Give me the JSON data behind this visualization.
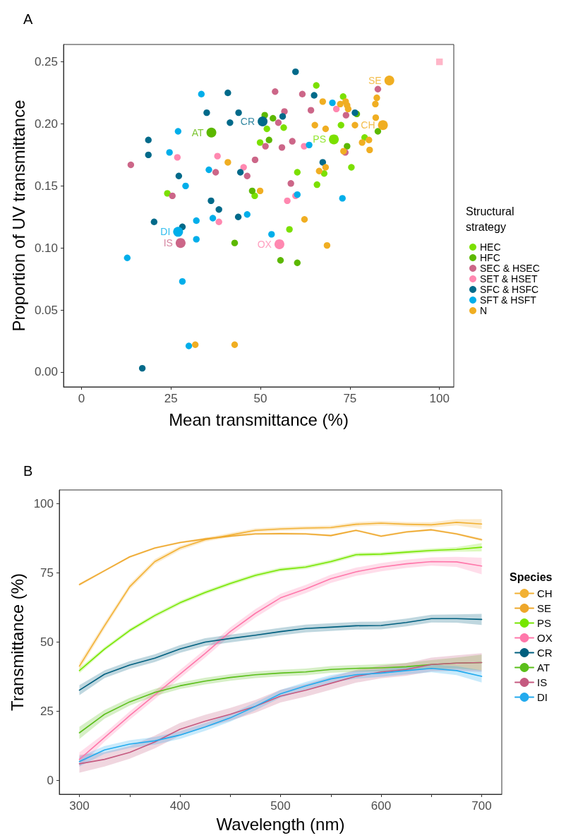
{
  "chart_data": [
    {
      "type": "scatter",
      "title": "A",
      "xlabel": "Mean transmittance (%)",
      "ylabel": "Proportion of UV transmittance",
      "legend_title": "Structural strategy",
      "legend": "right",
      "grid": false,
      "marker": "circle",
      "xlim": [
        -5,
        104
      ],
      "xticks": [
        0,
        25,
        50,
        75,
        100
      ],
      "ylim": [
        -0.012,
        0.264
      ],
      "yticks": [
        {
          "value": 0,
          "label": "0.00"
        },
        {
          "value": 0.05,
          "label": "0.05"
        },
        {
          "value": 0.1,
          "label": "0.10"
        },
        {
          "value": 0.15,
          "label": "0.15"
        },
        {
          "value": 0.2,
          "label": "0.20"
        },
        {
          "value": 0.25,
          "label": "0.25"
        }
      ],
      "series": [
        {
          "name": "HEC",
          "color": "#7be000",
          "sizes": [
            0.45,
            0.45,
            0.45,
            0.45,
            0.45,
            0.45,
            0.45,
            0.45,
            1,
            0.45,
            0.45,
            0.45,
            0.45,
            0.45,
            0.45
          ],
          "x": [
            49.9,
            48.4,
            24.0,
            65.6,
            73.1,
            51.8,
            56.5,
            72.5,
            70.5,
            79.1,
            75.4,
            67.8,
            60.3,
            65.8,
            58.1
          ],
          "values": [
            0.185,
            0.142,
            0.144,
            0.231,
            0.222,
            0.196,
            0.197,
            0.199,
            0.1875,
            0.189,
            0.165,
            0.16,
            0.161,
            0.151,
            0.115
          ]
        },
        {
          "name": "HFC",
          "color": "#5cb800",
          "sizes": [
            1,
            0.45,
            0.45,
            0.45,
            0.45,
            0.45,
            0.45,
            0.45,
            0.45,
            0.45,
            0.45
          ],
          "x": [
            36.3,
            47.7,
            42.8,
            76.9,
            82.8,
            52.4,
            51.2,
            53.5,
            74.2,
            55.6,
            60.3
          ],
          "values": [
            0.193,
            0.146,
            0.104,
            0.208,
            0.194,
            0.187,
            0.207,
            0.2045,
            0.182,
            0.09,
            0.088
          ]
        },
        {
          "name": "SEC & HSEC",
          "color": "#cc6688",
          "sizes": [
            0.45,
            0.45,
            0.45,
            0.45,
            0.45,
            1,
            0.45,
            0.45,
            0.45,
            0.45,
            0.45,
            0.45,
            0.45,
            0.45,
            0.45,
            0.45,
            0.45,
            0.45
          ],
          "x": [
            13.8,
            37.5,
            46.3,
            25.4,
            48.5,
            27.7,
            54.1,
            61.7,
            64.1,
            73.9,
            82.8,
            58.9,
            56.0,
            51.4,
            56.7,
            55.0,
            73.7,
            58.5
          ],
          "values": [
            0.167,
            0.161,
            0.158,
            0.142,
            0.171,
            0.104,
            0.226,
            0.224,
            0.211,
            0.207,
            0.228,
            0.186,
            0.181,
            0.182,
            0.21,
            0.201,
            0.177,
            0.152
          ]
        },
        {
          "name": "SET & HSET",
          "color": "#ff88b0",
          "sizes": [
            0.45,
            0.45,
            0.45,
            0.45,
            0.45,
            0.45,
            0.45,
            0.45,
            1
          ],
          "x": [
            26.8,
            38.0,
            45.3,
            38.4,
            71.2,
            62.2,
            59.8,
            57.5,
            55.3
          ],
          "values": [
            0.173,
            0.174,
            0.165,
            0.121,
            0.212,
            0.182,
            0.142,
            0.138,
            0.103
          ]
        },
        {
          "name": "SFC & HSFC",
          "color": "#006a8a",
          "sizes": [
            0.45,
            0.45,
            0.45,
            0.45,
            1,
            0.45,
            0.45,
            0.45,
            0.45,
            0.45,
            0.45,
            0.45,
            0.45,
            0.45,
            0.45,
            0.45,
            0.45,
            0.45,
            0.45,
            0.45
          ],
          "x": [
            40.9,
            35.0,
            43.9,
            41.5,
            50.6,
            18.7,
            18.7,
            44.4,
            27.2,
            36.2,
            38.4,
            43.8,
            20.3,
            28.2,
            17.0,
            59.8,
            65.0,
            56.2,
            76.4,
            67.4
          ],
          "values": [
            0.225,
            0.209,
            0.209,
            0.201,
            0.202,
            0.187,
            0.175,
            0.161,
            0.158,
            0.138,
            0.131,
            0.125,
            0.121,
            0.117,
            0.003,
            0.242,
            0.223,
            0.206,
            0.209,
            0.169
          ]
        },
        {
          "name": "SFT & HSFT",
          "color": "#00aeea",
          "sizes": [
            0.45,
            0.45,
            0.45,
            0.45,
            0.45,
            0.45,
            0.45,
            0.45,
            1,
            0.45,
            0.45,
            0.45,
            0.45,
            0.45,
            0.45,
            0.45,
            0.45,
            0.45
          ],
          "x": [
            33.5,
            27.0,
            24.6,
            35.6,
            29.1,
            46.3,
            36.7,
            32.1,
            27.0,
            32.1,
            12.8,
            28.2,
            30.0,
            70.1,
            63.6,
            60.3,
            72.9,
            53.1
          ],
          "values": [
            0.224,
            0.194,
            0.177,
            0.163,
            0.15,
            0.127,
            0.124,
            0.122,
            0.113,
            0.107,
            0.092,
            0.073,
            0.021,
            0.217,
            0.183,
            0.143,
            0.14,
            0.111
          ]
        },
        {
          "name": "N",
          "color": "#f0ae22",
          "sizes": [
            0.45,
            0.45,
            0.45,
            0.45,
            0.45,
            0.45,
            0.45,
            0.45,
            0.45,
            1,
            0.45,
            0.45,
            0.45,
            1,
            0.45,
            0.45,
            0.45,
            0.45,
            0.45,
            0.45,
            0.45,
            0.45,
            0.45,
            0.45,
            0.45
          ],
          "x": [
            40.9,
            49.9,
            31.8,
            42.8,
            67.4,
            72.3,
            73.8,
            74.2,
            74.5,
            86.0,
            82.5,
            82.1,
            82.2,
            84.2,
            76.4,
            65.2,
            68.2,
            80.3,
            78.4,
            73.2,
            80.5,
            68.2,
            66.4,
            62.3,
            68.6
          ],
          "values": [
            0.169,
            0.146,
            0.022,
            0.022,
            0.218,
            0.216,
            0.218,
            0.215,
            0.212,
            0.235,
            0.221,
            0.216,
            0.205,
            0.199,
            0.199,
            0.199,
            0.196,
            0.187,
            0.185,
            0.178,
            0.179,
            0.165,
            0.162,
            0.123,
            0.102
          ]
        },
        {
          "color": "#ffb6c8",
          "marker": "square",
          "sizes": [
            0.45
          ],
          "x": [
            100
          ],
          "values": [
            0.25
          ]
        }
      ],
      "annotations": [
        {
          "text": "SE",
          "x": 86.0,
          "y": 0.235
        },
        {
          "text": "CH",
          "x": 84.2,
          "y": 0.199
        },
        {
          "text": "PS",
          "x": 70.5,
          "y": 0.1875
        },
        {
          "text": "OX",
          "x": 55.3,
          "y": 0.103
        },
        {
          "text": "CR",
          "x": 50.6,
          "y": 0.202
        },
        {
          "text": "AT",
          "x": 36.3,
          "y": 0.193
        },
        {
          "text": "DI",
          "x": 27.0,
          "y": 0.113
        },
        {
          "text": "IS",
          "x": 27.7,
          "y": 0.104
        }
      ]
    },
    {
      "type": "line",
      "title": "B",
      "xlabel": "Wavelength (nm)",
      "ylabel": "Transmittance (%)",
      "legend_title": "Species",
      "legend": "right",
      "grid": false,
      "marker": "none",
      "line_style": "solid",
      "xlim": [
        280,
        720
      ],
      "xticks": [
        300,
        {
          "value": 350,
          "label": null
        },
        400,
        {
          "value": 450,
          "label": null
        },
        500,
        {
          "value": 550,
          "label": null
        },
        600,
        {
          "value": 650,
          "label": null
        },
        700
      ],
      "ylim": [
        -5,
        105
      ],
      "yticks": [
        0,
        25,
        50,
        75,
        100
      ],
      "x": [
        300,
        325,
        350,
        375,
        400,
        425,
        450,
        475,
        500,
        525,
        550,
        575,
        600,
        625,
        650,
        675,
        700
      ],
      "series": [
        {
          "name": "CH",
          "color": "#f2b134",
          "values": [
            41.3,
            55.9,
            70.0,
            79.1,
            84.0,
            87.0,
            88.7,
            90.4,
            90.9,
            91.2,
            91.4,
            92.6,
            93.0,
            92.6,
            92.4,
            93.3,
            92.7
          ],
          "lower": [
            40.0,
            54.8,
            69.0,
            78.2,
            83.2,
            86.3,
            88.0,
            89.7,
            90.2,
            90.5,
            90.7,
            91.8,
            92.2,
            91.8,
            91.5,
            92.2,
            90.9
          ],
          "upper": [
            42.6,
            57.0,
            71.0,
            80.0,
            84.8,
            87.7,
            89.4,
            91.1,
            91.6,
            91.9,
            92.1,
            93.4,
            93.8,
            93.4,
            93.3,
            94.4,
            94.5
          ]
        },
        {
          "name": "SE",
          "color": "#eea72a",
          "values": [
            70.8,
            75.8,
            80.8,
            84.0,
            86.0,
            87.3,
            88.3,
            89.1,
            89.2,
            89.1,
            88.5,
            90.4,
            88.3,
            89.8,
            90.6,
            89.1,
            87.0
          ],
          "lower": [
            70.3,
            75.4,
            80.4,
            83.6,
            85.6,
            86.9,
            87.9,
            88.7,
            88.8,
            88.7,
            88.1,
            90.0,
            87.9,
            89.4,
            90.2,
            88.7,
            86.5
          ],
          "upper": [
            71.3,
            76.2,
            81.2,
            84.4,
            86.4,
            87.7,
            88.7,
            89.5,
            89.6,
            89.5,
            88.9,
            90.8,
            88.7,
            90.2,
            91.0,
            89.5,
            87.5
          ]
        },
        {
          "name": "PS",
          "color": "#77e600",
          "values": [
            39.7,
            47.5,
            54.2,
            59.6,
            64.2,
            67.9,
            71.2,
            74.1,
            76.2,
            77.1,
            79.1,
            81.6,
            81.8,
            82.5,
            83.1,
            83.5,
            84.3
          ],
          "lower": [
            38.8,
            46.8,
            53.5,
            58.9,
            63.5,
            67.2,
            70.5,
            73.4,
            75.5,
            76.4,
            78.4,
            80.9,
            81.1,
            81.8,
            82.4,
            82.7,
            82.8
          ],
          "upper": [
            40.6,
            48.2,
            54.9,
            60.3,
            64.9,
            68.6,
            71.9,
            74.8,
            76.9,
            77.8,
            79.8,
            82.3,
            82.5,
            83.2,
            83.8,
            84.3,
            85.8
          ]
        },
        {
          "name": "OX",
          "color": "#ff77aa",
          "values": [
            7.6,
            15.5,
            23.4,
            30.9,
            38.4,
            45.9,
            53.8,
            60.4,
            66.0,
            69.2,
            72.9,
            75.4,
            77.1,
            78.3,
            79.1,
            79.0,
            77.5
          ],
          "lower": [
            5.1,
            14.0,
            21.9,
            29.4,
            36.9,
            44.4,
            52.3,
            58.9,
            64.5,
            67.7,
            71.4,
            73.9,
            75.6,
            76.8,
            77.6,
            77.2,
            74.5
          ],
          "upper": [
            10.1,
            17.0,
            24.9,
            32.4,
            39.9,
            47.4,
            55.3,
            61.9,
            67.5,
            70.7,
            74.4,
            76.9,
            78.6,
            79.8,
            80.6,
            80.8,
            80.5
          ]
        },
        {
          "name": "CR",
          "color": "#005f7f",
          "values": [
            32.6,
            38.4,
            41.7,
            44.2,
            47.5,
            50.0,
            51.3,
            52.5,
            53.8,
            54.9,
            55.4,
            55.9,
            56.0,
            57.1,
            58.5,
            58.5,
            58.2
          ],
          "lower": [
            30.8,
            37.0,
            40.3,
            42.8,
            46.1,
            48.6,
            49.9,
            51.1,
            52.4,
            53.5,
            54.0,
            54.5,
            54.6,
            55.7,
            57.1,
            57.0,
            56.2
          ],
          "upper": [
            34.4,
            39.8,
            43.1,
            45.6,
            48.9,
            51.4,
            52.7,
            53.9,
            55.2,
            56.3,
            56.8,
            57.3,
            57.4,
            58.5,
            59.9,
            60.0,
            60.2
          ]
        },
        {
          "name": "AT",
          "color": "#5bbf1a",
          "values": [
            17.2,
            23.9,
            28.4,
            31.8,
            34.2,
            35.9,
            37.2,
            38.2,
            38.8,
            39.2,
            40.1,
            40.5,
            40.7,
            41.1,
            41.9,
            42.4,
            42.6
          ],
          "lower": [
            15.0,
            22.3,
            27.0,
            30.5,
            33.0,
            34.7,
            36.0,
            37.0,
            37.6,
            38.0,
            38.9,
            39.3,
            39.4,
            39.7,
            40.3,
            40.4,
            39.7
          ],
          "upper": [
            19.4,
            25.5,
            29.8,
            33.1,
            35.4,
            37.1,
            38.4,
            39.4,
            40.0,
            40.4,
            41.3,
            41.7,
            42.0,
            42.5,
            43.5,
            44.4,
            45.5
          ]
        },
        {
          "name": "IS",
          "color": "#c55a80",
          "values": [
            6.0,
            7.6,
            10.1,
            13.9,
            18.5,
            21.4,
            23.9,
            26.8,
            30.5,
            32.6,
            35.1,
            37.6,
            39.2,
            40.1,
            41.9,
            42.4,
            42.6
          ],
          "lower": [
            2.8,
            5.0,
            7.8,
            11.6,
            16.2,
            19.1,
            21.6,
            24.5,
            28.2,
            30.3,
            32.8,
            35.3,
            36.9,
            37.8,
            39.4,
            39.6,
            39.2
          ],
          "upper": [
            9.2,
            10.2,
            12.4,
            16.2,
            20.8,
            23.7,
            26.2,
            29.1,
            32.8,
            34.9,
            37.4,
            39.9,
            41.5,
            42.4,
            44.4,
            45.2,
            46.0
          ]
        },
        {
          "name": "DI",
          "color": "#22aaee",
          "values": [
            6.8,
            11.0,
            13.1,
            14.3,
            16.4,
            19.3,
            22.6,
            26.8,
            31.3,
            34.2,
            36.7,
            38.2,
            38.8,
            39.7,
            40.5,
            39.7,
            37.6
          ],
          "lower": [
            5.0,
            9.6,
            11.7,
            12.9,
            15.0,
            17.9,
            21.2,
            25.4,
            29.9,
            32.8,
            35.3,
            36.8,
            37.4,
            38.3,
            39.1,
            38.1,
            35.4
          ],
          "upper": [
            8.6,
            12.4,
            14.5,
            15.7,
            17.8,
            20.7,
            24.0,
            28.2,
            32.7,
            35.6,
            38.1,
            39.6,
            40.2,
            41.1,
            41.9,
            41.3,
            39.8
          ]
        }
      ]
    }
  ]
}
